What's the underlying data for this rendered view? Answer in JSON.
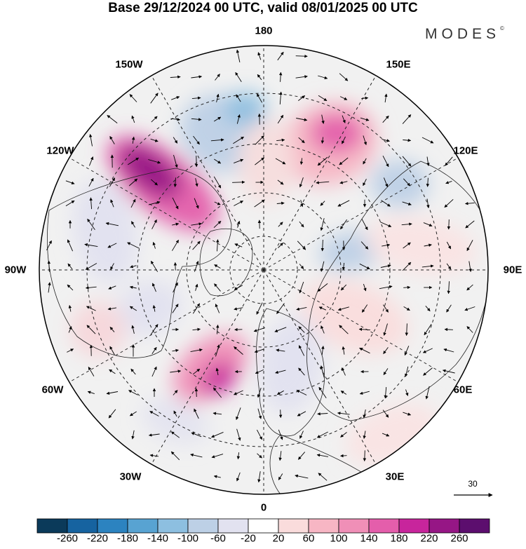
{
  "header": {
    "title": "Base 29/12/2024 00 UTC, valid 08/01/2025 00 UTC",
    "brand": "MODES",
    "brand_mark": "©"
  },
  "map": {
    "projection": "north-polar-stereographic",
    "longitude_labels": [
      "180",
      "150E",
      "120E",
      "90E",
      "60E",
      "30E",
      "0",
      "30W",
      "60W",
      "90W",
      "120W",
      "150W"
    ],
    "ocean_color": "#f1f1f1",
    "anomaly_cores": [
      {
        "region": "north-pacific-alaska",
        "value": 240
      },
      {
        "region": "east-siberia",
        "value": 160
      },
      {
        "region": "bering-chukchi",
        "value": -140
      },
      {
        "region": "central-siberia",
        "value": -140
      },
      {
        "region": "kara-sea",
        "value": -120
      },
      {
        "region": "west-siberia",
        "value": 80
      },
      {
        "region": "hudson-bay",
        "value": -100
      },
      {
        "region": "north-atlantic",
        "value": 180
      },
      {
        "region": "scandinavia-europe",
        "value": -100
      },
      {
        "region": "mid-atlantic",
        "value": -80
      }
    ]
  },
  "wind_reference": {
    "value": "30"
  },
  "colorbar": {
    "colors": [
      "#0b3a5a",
      "#1663a0",
      "#2c83c0",
      "#58a3d2",
      "#8dbfe0",
      "#bdd0e6",
      "#e2e2f0",
      "#ffffff",
      "#fadcdc",
      "#f7b6c4",
      "#f08fb7",
      "#e45eab",
      "#c8259c",
      "#961685",
      "#5c0e6e"
    ],
    "labels": [
      "-260",
      "-220",
      "-180",
      "-140",
      "-100",
      "-60",
      "-20",
      "20",
      "60",
      "100",
      "140",
      "180",
      "220",
      "260"
    ]
  }
}
